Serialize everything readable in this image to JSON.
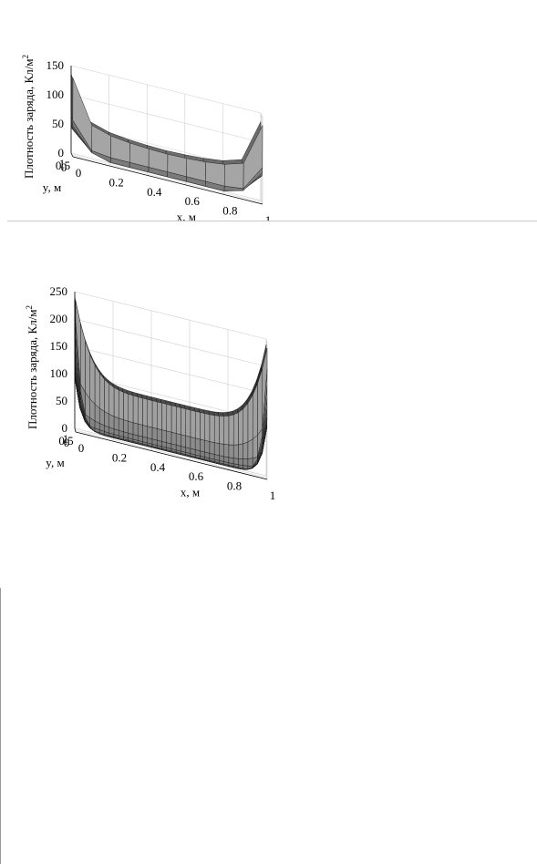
{
  "chart_data": [
    {
      "type": "surface",
      "title": "",
      "xlabel": "x, м",
      "ylabel": "y, м",
      "zlabel": "Плотность заряда, Кл/м",
      "zlabel_superscript": "2",
      "xlim": [
        0,
        1
      ],
      "ylim": [
        0,
        1
      ],
      "zlim": [
        0,
        150
      ],
      "x_ticks": [
        "0",
        "0.2",
        "0.4",
        "0.6",
        "0.8",
        "1"
      ],
      "y_ticks": [
        "0",
        "0.5",
        "1"
      ],
      "z_ticks": [
        "0",
        "50",
        "100",
        "150"
      ],
      "grid": true,
      "mesh_divisions": 10,
      "x": [
        0,
        0.1,
        0.2,
        0.3,
        0.4,
        0.5,
        0.6,
        0.7,
        0.8,
        0.9,
        1.0
      ],
      "y": [
        0,
        0.1,
        0.2,
        0.3,
        0.4,
        0.5,
        0.6,
        0.7,
        0.8,
        0.9,
        1.0
      ],
      "edge_values": [
        135,
        62,
        52,
        48,
        46,
        45,
        46,
        48,
        52,
        62,
        135
      ],
      "center_value": 5
    },
    {
      "type": "surface",
      "title": "",
      "xlabel": "x, м",
      "ylabel": "y, м",
      "zlabel": "Плотность заряда, Кл/м",
      "zlabel_superscript": "2",
      "xlim": [
        0,
        1
      ],
      "ylim": [
        0,
        1
      ],
      "zlim": [
        0,
        250
      ],
      "x_ticks": [
        "0",
        "0.2",
        "0.4",
        "0.6",
        "0.8",
        "1"
      ],
      "y_ticks": [
        "0",
        "0.5",
        "1"
      ],
      "z_ticks": [
        "0",
        "50",
        "100",
        "150",
        "200",
        "250"
      ],
      "grid": true,
      "mesh_divisions": 40,
      "corner_value": 240,
      "edge_mid_value": 92,
      "center_value": 5
    }
  ]
}
